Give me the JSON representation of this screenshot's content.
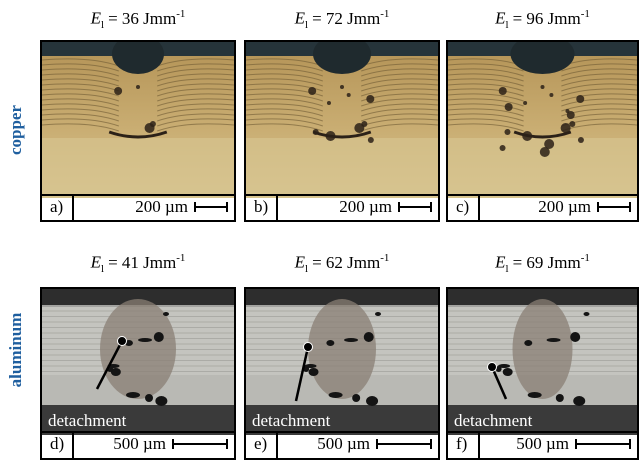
{
  "rows": [
    {
      "label": "copper",
      "panels": [
        {
          "header": {
            "symbol": "E",
            "subscript": "l",
            "text": "= 36 Jmm",
            "superscript": "-1"
          },
          "letter": "a)",
          "scale": "200 µm"
        },
        {
          "header": {
            "symbol": "E",
            "subscript": "l",
            "text": "= 72 Jmm",
            "superscript": "-1"
          },
          "letter": "b)",
          "scale": "200 µm"
        },
        {
          "header": {
            "symbol": "E",
            "subscript": "l",
            "text": "= 96 Jmm",
            "superscript": "-1"
          },
          "letter": "c)",
          "scale": "200 µm"
        }
      ]
    },
    {
      "label": "aluminum",
      "panels": [
        {
          "header": {
            "symbol": "E",
            "subscript": "l",
            "text": "= 41 Jmm",
            "superscript": "-1"
          },
          "letter": "d)",
          "scale": "500 µm",
          "annotation": "detachment"
        },
        {
          "header": {
            "symbol": "E",
            "subscript": "l",
            "text": "= 62 Jmm",
            "superscript": "-1"
          },
          "letter": "e)",
          "scale": "500 µm",
          "annotation": "detachment"
        },
        {
          "header": {
            "symbol": "E",
            "subscript": "l",
            "text": "= 69 Jmm",
            "superscript": "-1"
          },
          "letter": "f)",
          "scale": "500 µm",
          "annotation": "detachment"
        }
      ]
    }
  ]
}
